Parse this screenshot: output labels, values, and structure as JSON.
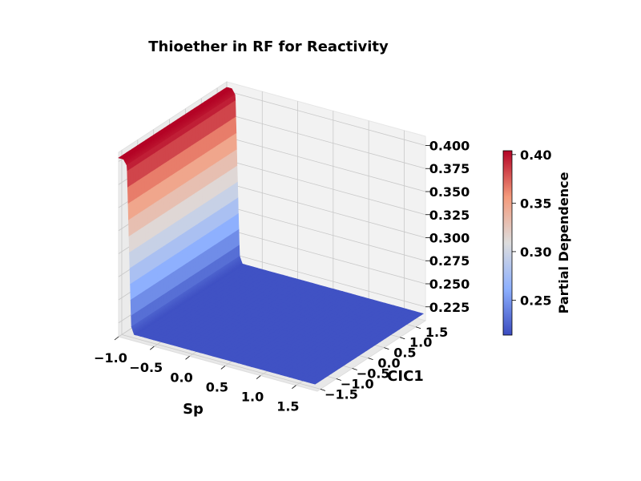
{
  "chart_data": {
    "type": "surface3d",
    "title": "Thioether in RF for Reactivity",
    "xlabel": "Sp",
    "ylabel": "CIC1",
    "zlabel": "",
    "x_range": [
      -1.0,
      1.8
    ],
    "y_range": [
      -1.6,
      1.8
    ],
    "z_range": [
      0.21,
      0.41
    ],
    "x_ticks": [
      "−1.0",
      "−0.5",
      "0.0",
      "0.5",
      "1.0",
      "1.5"
    ],
    "y_ticks": [
      "−1.5",
      "−1.0",
      "−0.5",
      "0.0",
      "0.5",
      "1.0",
      "1.5"
    ],
    "z_ticks": [
      "0.225",
      "0.250",
      "0.275",
      "0.300",
      "0.325",
      "0.350",
      "0.375",
      "0.400"
    ],
    "surface": {
      "description_values": {
        "high_plateau_value": 0.404,
        "low_plateau_value": 0.217,
        "step_location_sp": -0.85
      },
      "profile_sp": [
        -1.0,
        -0.93,
        -0.88,
        -0.85,
        -0.82,
        -0.78,
        1.8
      ],
      "profile_value": [
        0.404,
        0.404,
        0.398,
        0.31,
        0.225,
        0.217,
        0.217
      ]
    },
    "colorbar": {
      "label": "Partial Dependence",
      "range": [
        0.214,
        0.404
      ],
      "ticks": [
        "0.25",
        "0.30",
        "0.35",
        "0.40"
      ],
      "colormap": "coolwarm"
    },
    "grid": true
  }
}
